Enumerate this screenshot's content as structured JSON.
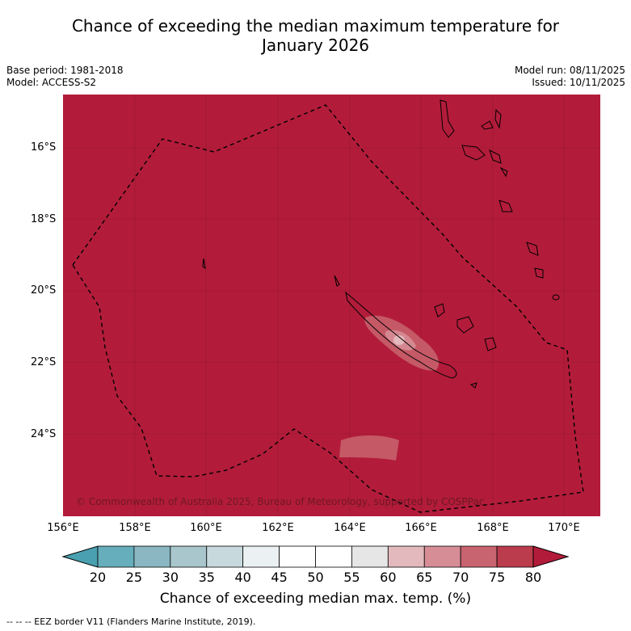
{
  "title": {
    "line1": "Chance of exceeding the median maximum temperature for",
    "line2": "January 2026"
  },
  "meta": {
    "base_period": "Base period: 1981-2018",
    "model": "Model: ACCESS-S2",
    "model_run": "Model run: 08/11/2025",
    "issued": "Issued: 10/11/2025"
  },
  "map": {
    "lat_labels": [
      "16°S",
      "18°S",
      "20°S",
      "22°S",
      "24°S"
    ],
    "lon_labels": [
      "156°E",
      "158°E",
      "160°E",
      "162°E",
      "164°E",
      "166°E",
      "168°E",
      "170°E"
    ],
    "copyright": "© Commonwealth of Australia 2025, Bureau of Meteorology, supported by COSPPac",
    "background_color": "#b21c3a"
  },
  "colorbar": {
    "ticks": [
      "20",
      "25",
      "30",
      "35",
      "40",
      "45",
      "50",
      "55",
      "60",
      "65",
      "70",
      "75",
      "80"
    ],
    "colors": [
      "#66aebb",
      "#8ab7c1",
      "#a8c6cb",
      "#c7d9dc",
      "#ebf1f2",
      "#ffffff",
      "#ffffff",
      "#e6e6e6",
      "#e3b9bd",
      "#d68d96",
      "#c8646f",
      "#bb3c4c"
    ],
    "under_color": "#4aa0b0",
    "over_color": "#b21c3a",
    "label": "Chance of exceeding median max. temp. (%)"
  },
  "footer": "--  --  -- EEZ border V11 (Flanders Marine Institute, 2019)."
}
